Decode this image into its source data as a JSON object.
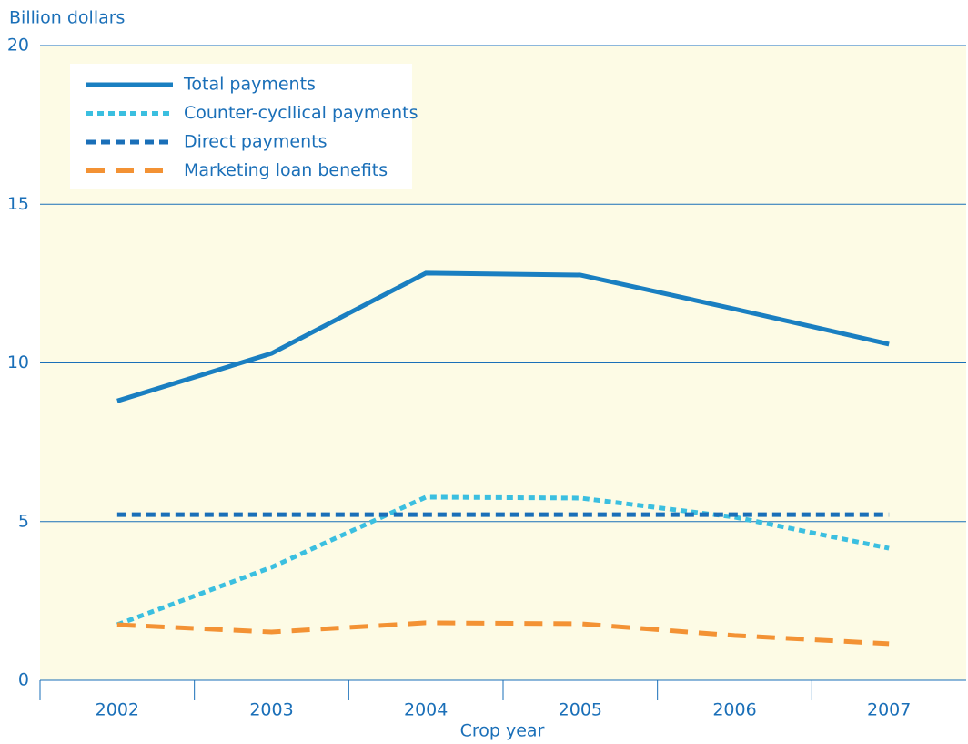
{
  "chart_data": {
    "type": "line",
    "y_label": "Billion dollars",
    "x_label": "Crop year",
    "categories": [
      "2002",
      "2003",
      "2004",
      "2005",
      "2006",
      "2007"
    ],
    "series": [
      {
        "name": "Total payments",
        "color": "#1a7fc1",
        "dash": "solid",
        "values": [
          8.8,
          10.3,
          12.83,
          12.77,
          11.7,
          10.59
        ]
      },
      {
        "name": "Counter-cycllical payments",
        "color": "#3bbfe0",
        "dash": "dotted",
        "values": [
          1.75,
          3.56,
          5.77,
          5.74,
          5.14,
          4.16
        ]
      },
      {
        "name": "Direct payments",
        "color": "#1a6fb8",
        "dash": "dashed",
        "values": [
          5.22,
          5.22,
          5.22,
          5.22,
          5.22,
          5.22
        ]
      },
      {
        "name": "Marketing loan benefits",
        "color": "#f39234",
        "dash": "longdash",
        "values": [
          1.75,
          1.52,
          1.81,
          1.78,
          1.41,
          1.15
        ]
      }
    ],
    "ylim": [
      0,
      20
    ],
    "yticks": [
      0,
      5,
      10,
      15,
      20
    ],
    "grid": true,
    "legend": "top-left"
  }
}
